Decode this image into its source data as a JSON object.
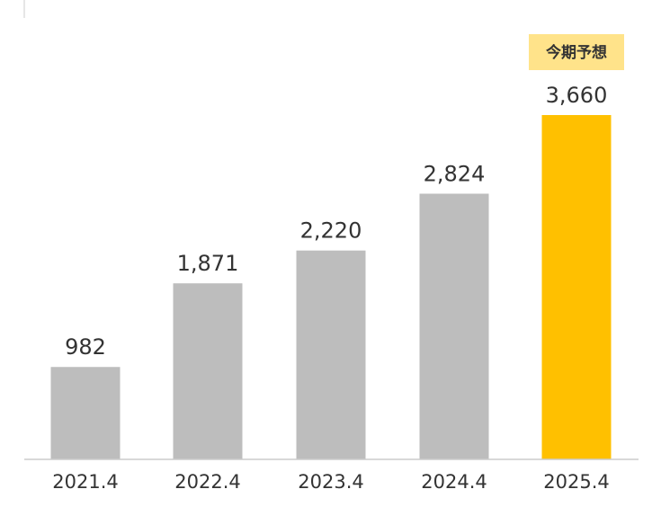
{
  "chart_data": {
    "type": "bar",
    "categories": [
      "2021.4",
      "2022.4",
      "2023.4",
      "2024.4",
      "2025.4"
    ],
    "values": [
      982,
      1871,
      2220,
      2824,
      3660
    ],
    "value_labels": [
      "982",
      "1,871",
      "2,220",
      "2,824",
      "3,660"
    ],
    "ylim": [
      0,
      3660
    ],
    "grid": false,
    "annotations": [
      {
        "category": "2025.4",
        "text": "今期予想"
      }
    ]
  },
  "colors": {
    "bar_default": "#bdbdbd",
    "bar_highlight": "#ffc000",
    "badge_background": "#ffe38a",
    "axis_line": "#cccccc",
    "text": "#333333"
  }
}
